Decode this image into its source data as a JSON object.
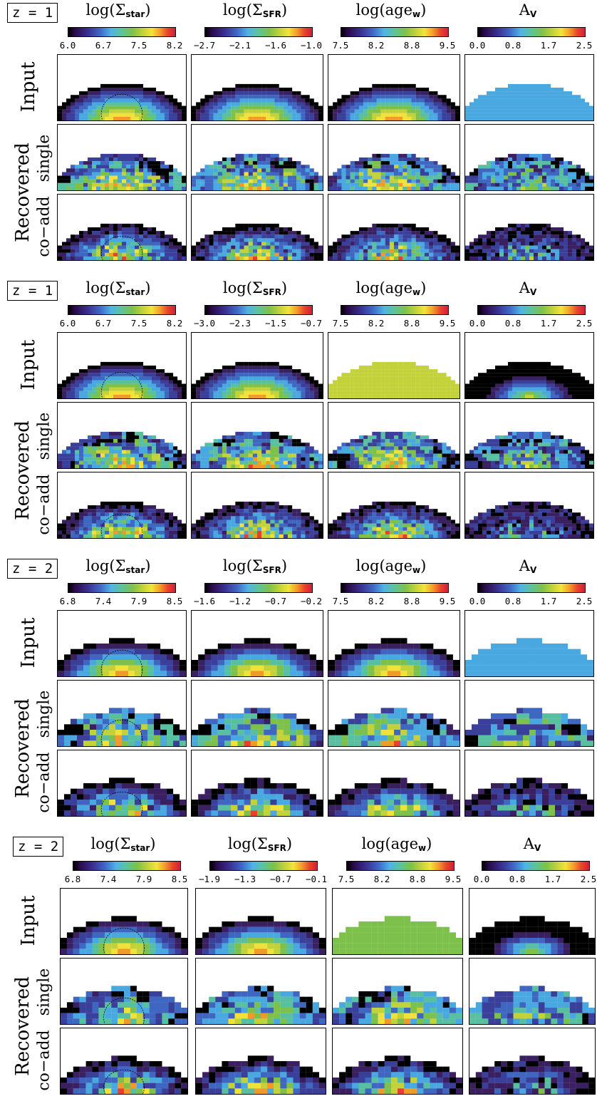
{
  "columns": [
    {
      "label": "log(Σ",
      "sub": "star",
      "tail": ")"
    },
    {
      "label": "log(Σ",
      "sub": "SFR",
      "tail": ")"
    },
    {
      "label": "log(age",
      "sub": "w",
      "tail": ")"
    },
    {
      "label": "A",
      "sub": "V",
      "tail": ""
    }
  ],
  "row_labels": {
    "input": "Input",
    "recovered": "Recovered",
    "single": "single",
    "coadd": "co−add"
  },
  "blocks": [
    {
      "z": "z = 1",
      "ticks": [
        [
          "6.0",
          "6.7",
          "7.5",
          "8.2"
        ],
        [
          "−2.7",
          "−2.1",
          "−1.6",
          "−1.0"
        ],
        [
          "7.5",
          "8.2",
          "8.8",
          "9.5"
        ],
        [
          "0.0",
          "0.8",
          "1.7",
          "2.5"
        ]
      ]
    },
    {
      "z": "z = 1",
      "ticks": [
        [
          "6.0",
          "6.7",
          "7.5",
          "8.2"
        ],
        [
          "−3.0",
          "−2.3",
          "−1.5",
          "−0.7"
        ],
        [
          "7.5",
          "8.2",
          "8.8",
          "9.5"
        ],
        [
          "0.0",
          "0.8",
          "1.7",
          "2.5"
        ]
      ]
    },
    {
      "z": "z = 2",
      "ticks": [
        [
          "6.8",
          "7.4",
          "7.9",
          "8.5"
        ],
        [
          "−1.6",
          "−1.2",
          "−0.7",
          "−0.2"
        ],
        [
          "7.5",
          "8.2",
          "8.8",
          "9.5"
        ],
        [
          "0.0",
          "0.8",
          "1.7",
          "2.5"
        ]
      ]
    },
    {
      "z": "z = 2",
      "ticks": [
        [
          "6.8",
          "7.4",
          "7.9",
          "8.5"
        ],
        [
          "−1.9",
          "−1.3",
          "−0.7",
          "−0.1"
        ],
        [
          "7.5",
          "8.2",
          "8.8",
          "9.5"
        ],
        [
          "0.0",
          "0.8",
          "1.7",
          "2.5"
        ]
      ]
    }
  ],
  "palette": [
    "#000000",
    "#3a2060",
    "#3a3f9a",
    "#3f66c0",
    "#4aa8e0",
    "#58c0a0",
    "#7dc14c",
    "#c3d23a",
    "#f0e23a",
    "#f09a2a",
    "#e84030"
  ]
}
